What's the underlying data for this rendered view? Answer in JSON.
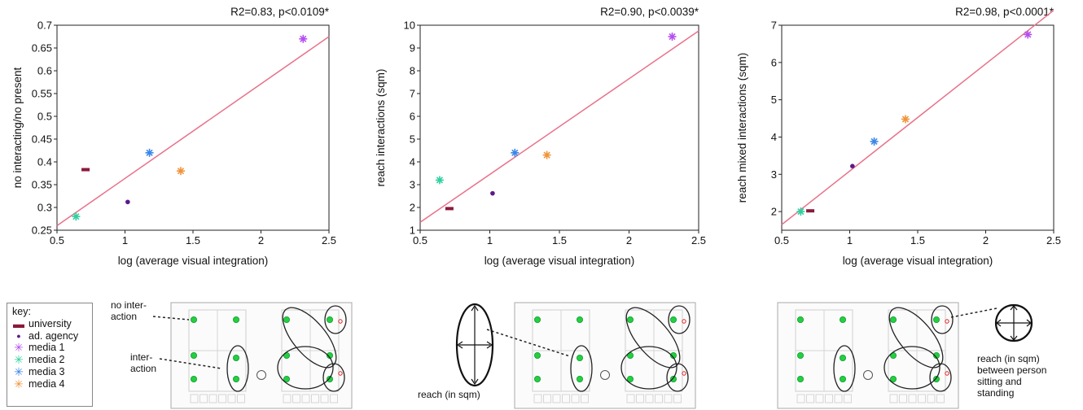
{
  "colors": {
    "fit_line": "#e8718a",
    "university": "#8b1a3a",
    "ad_agency": "#5a1a8a",
    "media_1": "#b44ef0",
    "media_2": "#2ecfa0",
    "media_3": "#3a86e8",
    "media_4": "#f0943a",
    "floorplan_node": "#22d040"
  },
  "legend": {
    "title": "key:",
    "entries": [
      {
        "label": "university",
        "marker": "dash",
        "color_key": "university"
      },
      {
        "label": "ad. agency",
        "marker": "dot",
        "color_key": "ad_agency"
      },
      {
        "label": "media 1",
        "marker": "asterisk",
        "color_key": "media_1"
      },
      {
        "label": "media 2",
        "marker": "asterisk",
        "color_key": "media_2"
      },
      {
        "label": "media 3",
        "marker": "asterisk",
        "color_key": "media_3"
      },
      {
        "label": "media 4",
        "marker": "asterisk",
        "color_key": "media_4"
      }
    ]
  },
  "annotations": {
    "no_interaction_1": "no inter-",
    "no_interaction_2": "action",
    "interaction_1": "inter-",
    "interaction_2": "action",
    "reach_label": "reach (in sqm)",
    "reach_between_1": "reach (in sqm)",
    "reach_between_2": "between person",
    "reach_between_3": "sitting and",
    "reach_between_4": "standing"
  },
  "chart_data": [
    {
      "type": "scatter",
      "annotation": "R2=0.83, p<0.0109*",
      "xlabel": "log (average visual integration)",
      "ylabel": "no interacting/no present",
      "xlim": [
        0.5,
        2.5
      ],
      "ylim": [
        0.25,
        0.7
      ],
      "xticks": [
        "0.5",
        "1",
        "1.5",
        "2",
        "2.5"
      ],
      "yticks": [
        "0.25",
        "0.3",
        "0.35",
        "0.4",
        "0.45",
        "0.5",
        "0.55",
        "0.6",
        "0.65",
        "0.7"
      ],
      "fit": {
        "x": [
          0.5,
          2.5
        ],
        "y": [
          0.26,
          0.675
        ]
      },
      "series": [
        {
          "name": "university",
          "x": 0.71,
          "y": 0.383
        },
        {
          "name": "ad. agency",
          "x": 1.02,
          "y": 0.312
        },
        {
          "name": "media 1",
          "x": 2.31,
          "y": 0.67
        },
        {
          "name": "media 2",
          "x": 0.64,
          "y": 0.28
        },
        {
          "name": "media 3",
          "x": 1.18,
          "y": 0.42
        },
        {
          "name": "media 4",
          "x": 1.41,
          "y": 0.38
        }
      ]
    },
    {
      "type": "scatter",
      "annotation": "R2=0.90, p<0.0039*",
      "xlabel": "log (average visual integration)",
      "ylabel": "reach interactions (sqm)",
      "xlim": [
        0.5,
        2.5
      ],
      "ylim": [
        1,
        10
      ],
      "xticks": [
        "0.5",
        "1",
        "1.5",
        "2",
        "2.5"
      ],
      "yticks": [
        "1",
        "2",
        "3",
        "4",
        "5",
        "6",
        "7",
        "8",
        "9",
        "10"
      ],
      "fit": {
        "x": [
          0.5,
          2.5
        ],
        "y": [
          1.35,
          9.75
        ]
      },
      "series": [
        {
          "name": "university",
          "x": 0.71,
          "y": 1.95
        },
        {
          "name": "ad. agency",
          "x": 1.02,
          "y": 2.62
        },
        {
          "name": "media 1",
          "x": 2.31,
          "y": 9.5
        },
        {
          "name": "media 2",
          "x": 0.64,
          "y": 3.2
        },
        {
          "name": "media 3",
          "x": 1.18,
          "y": 4.4
        },
        {
          "name": "media 4",
          "x": 1.41,
          "y": 4.3
        }
      ]
    },
    {
      "type": "scatter",
      "annotation": "R2=0.98, p<0.0001*",
      "xlabel": "log (average visual integration)",
      "ylabel": "reach mixed interactions (sqm)",
      "xlim": [
        0.5,
        2.5
      ],
      "ylim": [
        1.5,
        7
      ],
      "xticks": [
        "0.5",
        "1",
        "1.5",
        "2",
        "2.5"
      ],
      "yticks": [
        "2",
        "3",
        "4",
        "5",
        "6",
        "7"
      ],
      "fit": {
        "x": [
          0.5,
          2.5
        ],
        "y": [
          1.65,
          7.4
        ]
      },
      "series": [
        {
          "name": "university",
          "x": 0.71,
          "y": 2.02
        },
        {
          "name": "ad. agency",
          "x": 1.02,
          "y": 3.22
        },
        {
          "name": "media 1",
          "x": 2.31,
          "y": 6.75
        },
        {
          "name": "media 2",
          "x": 0.64,
          "y": 2.0
        },
        {
          "name": "media 3",
          "x": 1.18,
          "y": 3.88
        },
        {
          "name": "media 4",
          "x": 1.41,
          "y": 4.48
        }
      ]
    }
  ]
}
